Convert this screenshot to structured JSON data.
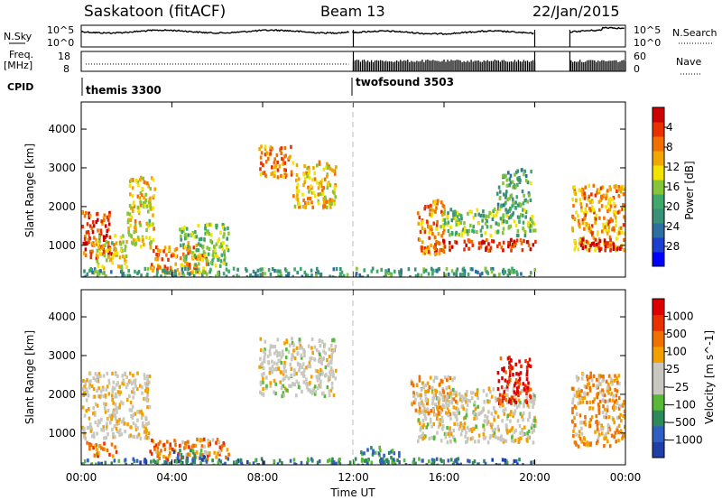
{
  "header": {
    "station": "Saskatoon (fitACF)",
    "beam": "Beam 13",
    "date": "22/Jan/2015"
  },
  "status_panels": {
    "nsky_label": "N.Sky",
    "nsky_ticks": [
      "10^5",
      "10^0"
    ],
    "nsearch_label": "N.Search",
    "nsearch_ticks": [
      "10^5",
      "10^0"
    ],
    "freq_label_1": "Freq.",
    "freq_label_2": "[MHz]",
    "freq_ticks": [
      "18",
      "8"
    ],
    "nave_label": "Nave",
    "nave_ticks": [
      "60",
      "0"
    ],
    "cpid_label": "CPID",
    "cpid_segments": [
      {
        "name": "themis 3300",
        "start_hour": 0.0
      },
      {
        "name": "twofsound 3503",
        "start_hour": 11.9
      }
    ],
    "data_gaps_hours": [
      [
        11.85,
        11.95
      ],
      [
        20.0,
        21.55
      ]
    ]
  },
  "chart_data": [
    {
      "type": "heatmap",
      "parameter": "Power",
      "ylabel": "Slant Range [km]",
      "yticks": [
        1000,
        2000,
        3000,
        4000
      ],
      "ylim": [
        180,
        4700
      ],
      "xlim": [
        0,
        24
      ],
      "colorbar": {
        "label": "Power [dB]",
        "ticks": [
          "4",
          "8",
          "12",
          "16",
          "20",
          "24",
          "28"
        ],
        "colors": [
          "#0000ff",
          "#1f3fcf",
          "#2d6fa0",
          "#3b9078",
          "#3fa86a",
          "#86c43a",
          "#f2e400",
          "#f0a800",
          "#f07000",
          "#e83000",
          "#cc0000"
        ]
      },
      "scatter_bands": [
        {
          "t0": 0.0,
          "t1": 1.3,
          "r0": 700,
          "r1": 1900,
          "level": 0.85
        },
        {
          "t0": 0.6,
          "t1": 2.0,
          "r0": 450,
          "r1": 1300,
          "level": 0.6
        },
        {
          "t0": 2.0,
          "t1": 3.2,
          "r0": 1000,
          "r1": 2800,
          "level": 0.6
        },
        {
          "t0": 3.0,
          "t1": 5.5,
          "r0": 300,
          "r1": 1000,
          "level": 0.75
        },
        {
          "t0": 4.3,
          "t1": 6.5,
          "r0": 500,
          "r1": 1600,
          "level": 0.5
        },
        {
          "t0": 7.8,
          "t1": 9.3,
          "r0": 2800,
          "r1": 3600,
          "level": 0.75
        },
        {
          "t0": 9.3,
          "t1": 11.2,
          "r0": 2000,
          "r1": 3200,
          "level": 0.65
        },
        {
          "t0": 14.8,
          "t1": 16.0,
          "r0": 800,
          "r1": 2200,
          "level": 0.75
        },
        {
          "t0": 15.5,
          "t1": 20.0,
          "r0": 900,
          "r1": 1200,
          "level": 0.9
        },
        {
          "t0": 15.8,
          "t1": 20.0,
          "r0": 1300,
          "r1": 2000,
          "level": 0.45
        },
        {
          "t0": 21.6,
          "t1": 24.0,
          "r0": 900,
          "r1": 2600,
          "level": 0.7
        },
        {
          "t0": 22.0,
          "t1": 24.0,
          "r0": 900,
          "r1": 1200,
          "level": 0.95
        },
        {
          "t0": 0.0,
          "t1": 20.0,
          "r0": 200,
          "r1": 450,
          "level": 0.35
        },
        {
          "t0": 18.3,
          "t1": 19.8,
          "r0": 2000,
          "r1": 3000,
          "level": 0.4
        }
      ]
    },
    {
      "type": "heatmap",
      "parameter": "Velocity",
      "ylabel": "Slant Range [km]",
      "yticks": [
        1000,
        2000,
        3000,
        4000
      ],
      "ylim": [
        180,
        4700
      ],
      "xlim": [
        0,
        24
      ],
      "xticks": [
        "00:00",
        "04:00",
        "08:00",
        "12:00",
        "16:00",
        "20:00",
        "00:00"
      ],
      "xlabel": "Time UT",
      "colorbar": {
        "label": "Velocity [m s^-1]",
        "ticks": [
          "1000",
          "500",
          "100",
          "25",
          "−25",
          "−100",
          "−500",
          "−1000"
        ],
        "colors": [
          "#1f3fa8",
          "#2f5fc0",
          "#2e8a5a",
          "#57b83a",
          "#c8c8c0",
          "#c8c8c0",
          "#f2a000",
          "#f07000",
          "#e83000",
          "#dd0000"
        ]
      },
      "scatter_bands": [
        {
          "t0": 0.0,
          "t1": 3.0,
          "r0": 900,
          "r1": 2600,
          "level": 0.45
        },
        {
          "t0": 0.2,
          "t1": 1.6,
          "r0": 450,
          "r1": 800,
          "level": 0.25
        },
        {
          "t0": 3.0,
          "t1": 6.5,
          "r0": 350,
          "r1": 900,
          "level": 0.3
        },
        {
          "t0": 4.0,
          "t1": 5.5,
          "r0": 300,
          "r1": 600,
          "level": 0.8
        },
        {
          "t0": 7.8,
          "t1": 11.2,
          "r0": 2000,
          "r1": 3500,
          "level": 0.5
        },
        {
          "t0": 12.3,
          "t1": 14.0,
          "r0": 200,
          "r1": 700,
          "level": 0.75
        },
        {
          "t0": 14.8,
          "t1": 20.0,
          "r0": 800,
          "r1": 2200,
          "level": 0.48
        },
        {
          "t0": 14.5,
          "t1": 16.5,
          "r0": 1500,
          "r1": 2500,
          "level": 0.38
        },
        {
          "t0": 18.3,
          "t1": 19.8,
          "r0": 1800,
          "r1": 3000,
          "level": 0.1
        },
        {
          "t0": 21.6,
          "t1": 24.0,
          "r0": 700,
          "r1": 2600,
          "level": 0.35
        },
        {
          "t0": 0.0,
          "t1": 20.0,
          "r0": 200,
          "r1": 380,
          "level": 0.78
        }
      ]
    }
  ]
}
